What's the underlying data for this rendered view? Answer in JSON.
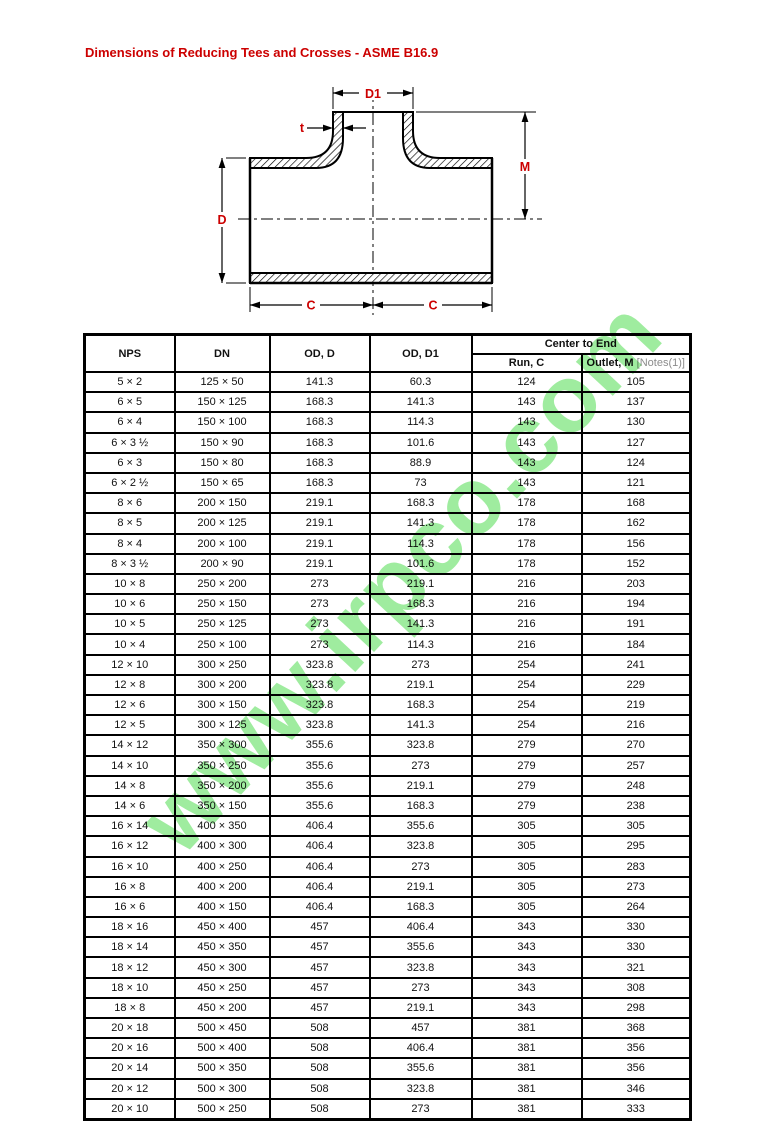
{
  "page": {
    "title": "Dimensions of Reducing Tees and Crosses - ASME B16.9"
  },
  "colors": {
    "accent_red": "#cc0000",
    "watermark_green": "#8ae88a",
    "note_gray": "#8c8c8c",
    "line_black": "#000000"
  },
  "watermark": {
    "text": "www.irpco.com"
  },
  "diagram": {
    "labels": {
      "d1": "D1",
      "t": "t",
      "m": "M",
      "d": "D",
      "c_left": "C",
      "c_right": "C"
    }
  },
  "table": {
    "header": {
      "nps": "NPS",
      "dn": "DN",
      "od_d": "OD, D",
      "od_d1": "OD, D1",
      "center_to_end": "Center to End",
      "run_c": "Run, C",
      "outlet_m": "Outlet, M",
      "outlet_m_note": " [Notes(1)]"
    },
    "rows": [
      [
        "5 × 2",
        "125 × 50",
        "141.3",
        "60.3",
        "124",
        "105"
      ],
      [
        "6 × 5",
        "150 × 125",
        "168.3",
        "141.3",
        "143",
        "137"
      ],
      [
        "6 × 4",
        "150 × 100",
        "168.3",
        "114.3",
        "143",
        "130"
      ],
      [
        "6 × 3 ½",
        "150 × 90",
        "168.3",
        "101.6",
        "143",
        "127"
      ],
      [
        "6 × 3",
        "150 × 80",
        "168.3",
        "88.9",
        "143",
        "124"
      ],
      [
        "6 × 2 ½",
        "150 × 65",
        "168.3",
        "73",
        "143",
        "121"
      ],
      [
        "8 × 6",
        "200 × 150",
        "219.1",
        "168.3",
        "178",
        "168"
      ],
      [
        "8 × 5",
        "200 × 125",
        "219.1",
        "141.3",
        "178",
        "162"
      ],
      [
        "8 × 4",
        "200 × 100",
        "219.1",
        "114.3",
        "178",
        "156"
      ],
      [
        "8 × 3 ½",
        "200 × 90",
        "219.1",
        "101.6",
        "178",
        "152"
      ],
      [
        "10 × 8",
        "250 × 200",
        "273",
        "219.1",
        "216",
        "203"
      ],
      [
        "10 × 6",
        "250 × 150",
        "273",
        "168.3",
        "216",
        "194"
      ],
      [
        "10 × 5",
        "250 × 125",
        "273",
        "141.3",
        "216",
        "191"
      ],
      [
        "10 × 4",
        "250 × 100",
        "273",
        "114.3",
        "216",
        "184"
      ],
      [
        "12 × 10",
        "300 × 250",
        "323.8",
        "273",
        "254",
        "241"
      ],
      [
        "12 × 8",
        "300 × 200",
        "323.8",
        "219.1",
        "254",
        "229"
      ],
      [
        "12 × 6",
        "300 × 150",
        "323.8",
        "168.3",
        "254",
        "219"
      ],
      [
        "12 × 5",
        "300 × 125",
        "323.8",
        "141.3",
        "254",
        "216"
      ],
      [
        "14 × 12",
        "350 × 300",
        "355.6",
        "323.8",
        "279",
        "270"
      ],
      [
        "14 × 10",
        "350 × 250",
        "355.6",
        "273",
        "279",
        "257"
      ],
      [
        "14 × 8",
        "350 × 200",
        "355.6",
        "219.1",
        "279",
        "248"
      ],
      [
        "14 × 6",
        "350 × 150",
        "355.6",
        "168.3",
        "279",
        "238"
      ],
      [
        "16 × 14",
        "400 × 350",
        "406.4",
        "355.6",
        "305",
        "305"
      ],
      [
        "16 × 12",
        "400 × 300",
        "406.4",
        "323.8",
        "305",
        "295"
      ],
      [
        "16 × 10",
        "400 × 250",
        "406.4",
        "273",
        "305",
        "283"
      ],
      [
        "16 × 8",
        "400 × 200",
        "406.4",
        "219.1",
        "305",
        "273"
      ],
      [
        "16 × 6",
        "400 × 150",
        "406.4",
        "168.3",
        "305",
        "264"
      ],
      [
        "18 × 16",
        "450 × 400",
        "457",
        "406.4",
        "343",
        "330"
      ],
      [
        "18 × 14",
        "450 × 350",
        "457",
        "355.6",
        "343",
        "330"
      ],
      [
        "18 × 12",
        "450 × 300",
        "457",
        "323.8",
        "343",
        "321"
      ],
      [
        "18 × 10",
        "450 × 250",
        "457",
        "273",
        "343",
        "308"
      ],
      [
        "18 × 8",
        "450 × 200",
        "457",
        "219.1",
        "343",
        "298"
      ],
      [
        "20 × 18",
        "500 × 450",
        "508",
        "457",
        "381",
        "368"
      ],
      [
        "20 × 16",
        "500 × 400",
        "508",
        "406.4",
        "381",
        "356"
      ],
      [
        "20 × 14",
        "500 × 350",
        "508",
        "355.6",
        "381",
        "356"
      ],
      [
        "20 × 12",
        "500 × 300",
        "508",
        "323.8",
        "381",
        "346"
      ],
      [
        "20 × 10",
        "500 × 250",
        "508",
        "273",
        "381",
        "333"
      ]
    ]
  }
}
